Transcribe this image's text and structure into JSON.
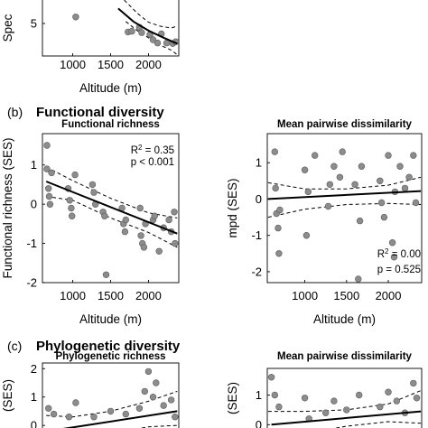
{
  "sections": {
    "b": {
      "label": "(b)",
      "title": "Functional diversity"
    },
    "c": {
      "label": "(c)",
      "title": "Phylogenetic diversity"
    }
  },
  "chart_data": [
    {
      "id": "a-right",
      "type": "scatter",
      "title": "",
      "xlabel": "Altitude (m)",
      "ylabel": "Spec",
      "xlim": [
        600,
        2400
      ],
      "ylim": [
        0,
        10
      ],
      "x_ticks": [
        "1000",
        "1500",
        "2000"
      ],
      "x_tick_values": [
        1000,
        1500,
        2000
      ],
      "y_ticks": [
        "5"
      ],
      "y_tick_values": [
        5
      ],
      "points": [
        {
          "x": 1040,
          "y": 6.0
        },
        {
          "x": 1730,
          "y": 3.7
        },
        {
          "x": 1780,
          "y": 3.8
        },
        {
          "x": 1880,
          "y": 4.4
        },
        {
          "x": 1910,
          "y": 3.6
        },
        {
          "x": 2020,
          "y": 3.3
        },
        {
          "x": 2060,
          "y": 2.5
        },
        {
          "x": 2120,
          "y": 2.0
        },
        {
          "x": 2170,
          "y": 3.4
        },
        {
          "x": 2240,
          "y": 2.0
        },
        {
          "x": 2320,
          "y": 1.9
        },
        {
          "x": 2360,
          "y": 2.2
        }
      ],
      "fit": {
        "kind": "curve",
        "line": [
          [
            1600,
            7.3
          ],
          [
            1800,
            5.3
          ],
          [
            2000,
            3.9
          ],
          [
            2200,
            2.8
          ],
          [
            2380,
            1.9
          ]
        ],
        "ci_upper": [
          [
            1680,
            8.6
          ],
          [
            1850,
            6.6
          ],
          [
            2000,
            5.2
          ],
          [
            2150,
            4.6
          ],
          [
            2300,
            4.3
          ],
          [
            2380,
            4.6
          ]
        ],
        "ci_lower": [
          [
            1700,
            5.3
          ],
          [
            1850,
            3.9
          ],
          [
            2000,
            2.8
          ],
          [
            2150,
            1.7
          ],
          [
            2300,
            0.9
          ],
          [
            2380,
            0.2
          ]
        ]
      }
    },
    {
      "id": "b-left",
      "type": "scatter",
      "title": "Functional richness",
      "xlabel": "Altitude (m)",
      "ylabel": "Functional richness (SES)",
      "xlim": [
        600,
        2400
      ],
      "ylim": [
        -2.0,
        1.8
      ],
      "x_ticks": [
        "1000",
        "1500",
        "2000"
      ],
      "x_tick_values": [
        1000,
        1500,
        2000
      ],
      "y_ticks": [
        "-2",
        "-1",
        "0",
        "1"
      ],
      "y_tick_values": [
        -2,
        -1,
        0,
        1
      ],
      "annotation": {
        "r2_prefix": "R",
        "r2_exp": "2",
        "r2_value": "= 0.35",
        "p": "p < 0.001"
      },
      "points": [
        {
          "x": 660,
          "y": 1.5
        },
        {
          "x": 660,
          "y": 0.9
        },
        {
          "x": 680,
          "y": 0.4
        },
        {
          "x": 690,
          "y": 0.2
        },
        {
          "x": 700,
          "y": 0.0
        },
        {
          "x": 720,
          "y": 0.8
        },
        {
          "x": 940,
          "y": 0.4
        },
        {
          "x": 960,
          "y": 0.1
        },
        {
          "x": 980,
          "y": -0.1
        },
        {
          "x": 990,
          "y": -0.3
        },
        {
          "x": 1030,
          "y": 0.75
        },
        {
          "x": 1260,
          "y": 0.5
        },
        {
          "x": 1280,
          "y": 0.3
        },
        {
          "x": 1300,
          "y": 0.0
        },
        {
          "x": 1400,
          "y": -0.2
        },
        {
          "x": 1420,
          "y": -0.3
        },
        {
          "x": 1440,
          "y": -1.8
        },
        {
          "x": 1650,
          "y": -0.1
        },
        {
          "x": 1670,
          "y": -0.5
        },
        {
          "x": 1690,
          "y": -0.7
        },
        {
          "x": 1700,
          "y": -0.4
        },
        {
          "x": 1890,
          "y": -0.1
        },
        {
          "x": 1900,
          "y": -0.8
        },
        {
          "x": 1920,
          "y": -1.0
        },
        {
          "x": 1940,
          "y": -1.1
        },
        {
          "x": 1960,
          "y": -0.5
        },
        {
          "x": 2060,
          "y": -0.4
        },
        {
          "x": 2080,
          "y": -0.3
        },
        {
          "x": 2140,
          "y": -1.2
        },
        {
          "x": 2200,
          "y": -0.6
        },
        {
          "x": 2270,
          "y": -0.4
        },
        {
          "x": 2300,
          "y": -0.7
        },
        {
          "x": 2340,
          "y": -0.2
        },
        {
          "x": 2350,
          "y": -1.0
        }
      ],
      "fit": {
        "kind": "linear",
        "line": [
          [
            650,
            0.58
          ],
          [
            2380,
            -0.75
          ]
        ],
        "ci_upper": [
          [
            650,
            0.95
          ],
          [
            1000,
            0.6
          ],
          [
            1500,
            0.15
          ],
          [
            2000,
            -0.22
          ],
          [
            2380,
            -0.35
          ]
        ],
        "ci_lower": [
          [
            650,
            0.2
          ],
          [
            1000,
            0.1
          ],
          [
            1500,
            -0.35
          ],
          [
            2000,
            -0.72
          ],
          [
            2380,
            -1.1
          ]
        ]
      }
    },
    {
      "id": "b-right",
      "type": "scatter",
      "title": "Mean pairwise dissimilarity",
      "xlabel": "Altitude (m)",
      "ylabel": "mpd (SES)",
      "xlim": [
        550,
        2400
      ],
      "ylim": [
        -2.3,
        1.8
      ],
      "x_ticks": [
        "1000",
        "1500",
        "2000"
      ],
      "x_tick_values": [
        1000,
        1500,
        2000
      ],
      "y_ticks": [
        "-2",
        "-1",
        "0",
        "1"
      ],
      "y_tick_values": [
        -2,
        -1,
        0,
        1
      ],
      "annotation": {
        "r2_prefix": "R",
        "r2_exp": "2",
        "r2_value": "= 0.00",
        "p": "p = 0.525"
      },
      "points": [
        {
          "x": 640,
          "y": 1.3
        },
        {
          "x": 650,
          "y": 0.3
        },
        {
          "x": 660,
          "y": -0.4
        },
        {
          "x": 680,
          "y": -0.8
        },
        {
          "x": 690,
          "y": -1.5
        },
        {
          "x": 700,
          "y": -0.3
        },
        {
          "x": 1000,
          "y": 0.8
        },
        {
          "x": 1020,
          "y": -1.0
        },
        {
          "x": 1040,
          "y": 0.2
        },
        {
          "x": 1120,
          "y": 1.2
        },
        {
          "x": 1280,
          "y": -0.2
        },
        {
          "x": 1300,
          "y": 0.4
        },
        {
          "x": 1350,
          "y": 0.9
        },
        {
          "x": 1420,
          "y": 0.6
        },
        {
          "x": 1450,
          "y": 1.3
        },
        {
          "x": 1600,
          "y": 0.4
        },
        {
          "x": 1640,
          "y": -2.2
        },
        {
          "x": 1660,
          "y": -0.6
        },
        {
          "x": 1680,
          "y": 0.9
        },
        {
          "x": 1900,
          "y": 0.5
        },
        {
          "x": 1920,
          "y": -0.1
        },
        {
          "x": 1950,
          "y": -0.5
        },
        {
          "x": 2000,
          "y": 1.2
        },
        {
          "x": 2050,
          "y": -1.2
        },
        {
          "x": 2070,
          "y": -1.6
        },
        {
          "x": 2080,
          "y": 0.2
        },
        {
          "x": 2140,
          "y": 0.9
        },
        {
          "x": 2200,
          "y": 0.3
        },
        {
          "x": 2250,
          "y": 0.6
        },
        {
          "x": 2300,
          "y": 1.2
        },
        {
          "x": 2330,
          "y": -0.1
        }
      ],
      "fit": {
        "kind": "linear",
        "line": [
          [
            560,
            0.0
          ],
          [
            2390,
            0.22
          ]
        ],
        "ci_upper": [
          [
            560,
            0.45
          ],
          [
            1000,
            0.28
          ],
          [
            1500,
            0.28
          ],
          [
            2000,
            0.38
          ],
          [
            2390,
            0.6
          ]
        ],
        "ci_lower": [
          [
            560,
            -0.5
          ],
          [
            1000,
            -0.28
          ],
          [
            1500,
            -0.15
          ],
          [
            2000,
            -0.12
          ],
          [
            2390,
            -0.15
          ]
        ]
      }
    },
    {
      "id": "c-left",
      "type": "scatter",
      "title": "Phylogenetic richness",
      "xlabel": "",
      "ylabel": "(SES)",
      "xlim": [
        600,
        2400
      ],
      "ylim": [
        -0.6,
        2.2
      ],
      "x_ticks": [],
      "x_tick_values": [],
      "y_ticks": [
        "0",
        "1",
        "2"
      ],
      "y_tick_values": [
        0,
        1,
        2
      ],
      "points": [
        {
          "x": 680,
          "y": 0.6
        },
        {
          "x": 750,
          "y": 0.4
        },
        {
          "x": 950,
          "y": 0.3
        },
        {
          "x": 1040,
          "y": 0.8
        },
        {
          "x": 1280,
          "y": 0.3
        },
        {
          "x": 1500,
          "y": 0.5
        },
        {
          "x": 1700,
          "y": 0.4
        },
        {
          "x": 1880,
          "y": 0.6
        },
        {
          "x": 1950,
          "y": 1.2
        },
        {
          "x": 2000,
          "y": 1.9
        },
        {
          "x": 2060,
          "y": 1.0
        },
        {
          "x": 2100,
          "y": 1.5
        },
        {
          "x": 2200,
          "y": 0.7
        },
        {
          "x": 2300,
          "y": 0.9
        },
        {
          "x": 2350,
          "y": 0.3
        }
      ],
      "fit": {
        "kind": "linear",
        "line": [
          [
            800,
            -0.15
          ],
          [
            2380,
            0.5
          ]
        ],
        "ci_upper": [
          [
            650,
            0.35
          ],
          [
            1000,
            0.3
          ],
          [
            1500,
            0.5
          ],
          [
            2000,
            0.85
          ],
          [
            2380,
            1.2
          ]
        ],
        "ci_lower": [
          [
            1500,
            -0.3
          ],
          [
            2000,
            -0.05
          ],
          [
            2380,
            0.0
          ]
        ]
      }
    },
    {
      "id": "c-right",
      "type": "scatter",
      "title": "Mean pairwise dissimilarity",
      "xlabel": "",
      "ylabel": "(SES)",
      "xlim": [
        550,
        2400
      ],
      "ylim": [
        -0.6,
        1.9
      ],
      "x_ticks": [],
      "x_tick_values": [],
      "y_ticks": [
        "0",
        "1"
      ],
      "y_tick_values": [
        0,
        1
      ],
      "points": [
        {
          "x": 600,
          "y": 1.6
        },
        {
          "x": 640,
          "y": 1.0
        },
        {
          "x": 690,
          "y": 0.6
        },
        {
          "x": 1000,
          "y": 0.9
        },
        {
          "x": 1050,
          "y": 0.2
        },
        {
          "x": 1250,
          "y": 0.4
        },
        {
          "x": 1350,
          "y": 0.8
        },
        {
          "x": 1500,
          "y": 0.5
        },
        {
          "x": 1650,
          "y": 1.0
        },
        {
          "x": 1900,
          "y": 0.6
        },
        {
          "x": 2000,
          "y": 1.1
        },
        {
          "x": 2100,
          "y": 0.8
        },
        {
          "x": 2200,
          "y": 0.4
        },
        {
          "x": 2300,
          "y": 1.4
        },
        {
          "x": 2340,
          "y": 0.9
        }
      ],
      "fit": {
        "kind": "linear",
        "line": [
          [
            600,
            0.0
          ],
          [
            2390,
            0.45
          ]
        ],
        "ci_upper": [
          [
            560,
            0.45
          ],
          [
            1000,
            0.45
          ],
          [
            1500,
            0.5
          ],
          [
            2000,
            0.7
          ],
          [
            2390,
            1.15
          ]
        ],
        "ci_lower": [
          [
            1000,
            -0.3
          ],
          [
            1500,
            -0.05
          ],
          [
            2000,
            0.1
          ],
          [
            2390,
            0.05
          ]
        ]
      }
    }
  ]
}
